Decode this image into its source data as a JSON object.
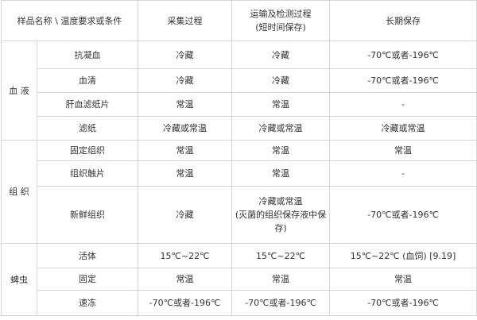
{
  "table": {
    "header": [
      "样品名称 \\ 温度要求或条件",
      "采集过程",
      [
        "运输及检测过程",
        "(短时间保存)"
      ],
      "长期保存"
    ],
    "groups": [
      {
        "label": "血 液",
        "rows": [
          [
            "抗凝血",
            "冷藏",
            "冷藏",
            "-70℃或者-196℃"
          ],
          [
            "血清",
            "冷藏",
            "冷藏",
            "-70℃或者-196℃"
          ],
          [
            "肝血滤纸片",
            "常温",
            "常温",
            "-"
          ],
          [
            "滤纸",
            "冷藏或常温",
            "冷藏或常温",
            "冷藏或常温"
          ]
        ]
      },
      {
        "label": "组 织",
        "rows": [
          [
            "固定组织",
            "常温",
            "常温",
            "常温"
          ],
          [
            "组织触片",
            "常温",
            "常温",
            "-"
          ],
          [
            "新鲜组织",
            "冷藏",
            [
              "冷藏或常温",
              "(灭菌的组织保存液中保存)"
            ],
            "-70℃或者-196℃"
          ]
        ]
      },
      {
        "label": "蜱虫",
        "rows": [
          [
            "活体",
            "15℃~22℃",
            "15℃~22℃",
            "15℃~22℃ (血饲) [9.19]"
          ],
          [
            "固定",
            "常温",
            "常温",
            "常温"
          ],
          [
            "速冻",
            "-70℃或者-196℃",
            "-70℃或者-196℃",
            "-70℃或者-196℃"
          ]
        ]
      }
    ]
  }
}
